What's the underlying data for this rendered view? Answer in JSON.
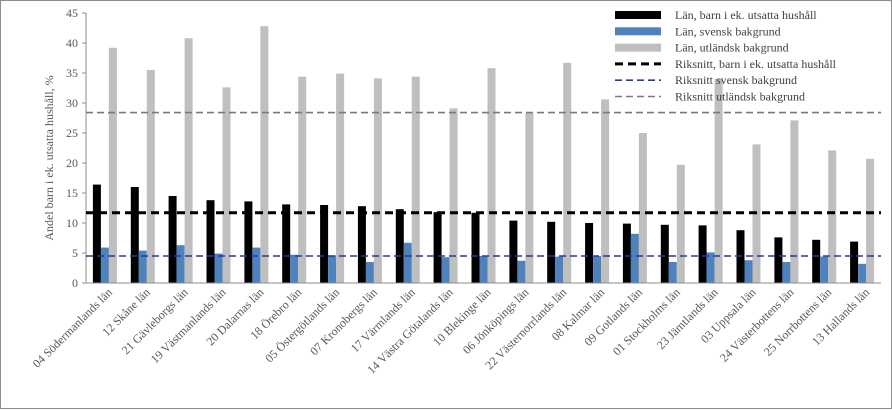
{
  "chart_data": {
    "type": "bar",
    "title": "",
    "xlabel": "",
    "ylabel": "Andel barn i ek. utsatta hushåll, %",
    "ylim": [
      0,
      45
    ],
    "yticks": [
      0,
      5,
      10,
      15,
      20,
      25,
      30,
      35,
      40,
      45
    ],
    "grid": false,
    "legend_position": "top-right",
    "categories": [
      "04 Södermanlands län",
      "12 Skåne län",
      "21 Gävleborgs län",
      "19 Västmanlands län",
      "20 Dalarnas län",
      "18 Örebro län",
      "05 Östergötlands län",
      "07 Kronobergs län",
      "17 Värmlands län",
      "14 Västra Götalands län",
      "10 Blekinge län",
      "06 Jönköpings län",
      "22 Västernorrlands län",
      "08 Kalmar län",
      "09 Gotlands län",
      "01 Stockholms län",
      "23 Jämtlands län",
      "03 Uppsala län",
      "24 Västerbottens län",
      "25 Norrbottens län",
      "13 Hallands län"
    ],
    "series": [
      {
        "name": "Län, barn i ek. utsatta hushåll",
        "color": "#000000",
        "values": [
          16.4,
          16.0,
          14.5,
          13.8,
          13.6,
          13.1,
          13.0,
          12.8,
          12.3,
          11.8,
          11.7,
          10.4,
          10.2,
          10.0,
          9.9,
          9.7,
          9.6,
          8.8,
          7.6,
          7.2,
          6.9
        ]
      },
      {
        "name": "Län, svensk bakgrund",
        "color": "#4f81bd",
        "values": [
          5.9,
          5.4,
          6.3,
          4.9,
          5.9,
          4.7,
          4.6,
          3.5,
          6.7,
          4.3,
          4.5,
          3.7,
          4.4,
          4.5,
          8.2,
          3.5,
          5.1,
          3.8,
          3.5,
          4.4,
          3.2
        ]
      },
      {
        "name": "Län, utländsk bakgrund",
        "color": "#bfbfbf",
        "values": [
          39.2,
          35.5,
          40.8,
          32.6,
          42.8,
          34.4,
          34.9,
          34.1,
          34.4,
          29.1,
          35.8,
          28.3,
          36.7,
          30.6,
          25.0,
          19.7,
          34.0,
          23.1,
          27.1,
          22.1,
          20.7
        ]
      }
    ],
    "reference_lines": [
      {
        "name": "Riksnitt, barn i ek. utsatta hushåll",
        "value": 11.7,
        "color": "#000000",
        "style": "dashed"
      },
      {
        "name": "Riksnitt svensk bakgrund",
        "value": 4.5,
        "color": "#1f3d99",
        "style": "dashed"
      },
      {
        "name": "Riksnitt utländsk bakgrund",
        "value": 28.4,
        "color": "#7a7a7a",
        "style": "dashed"
      }
    ]
  }
}
